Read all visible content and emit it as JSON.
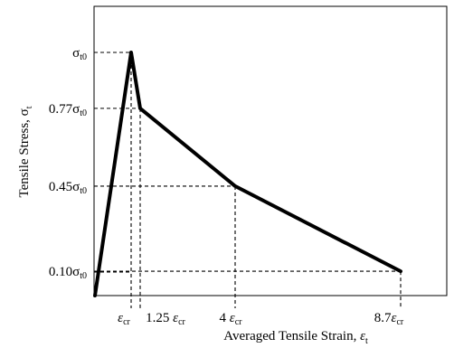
{
  "chart_data": {
    "type": "line",
    "xlabel": "Averaged Tensile Strain, ",
    "xlabel_symbol": "ε",
    "xlabel_sub": "t",
    "ylabel": "Tensile Stress, ",
    "ylabel_symbol": "σ",
    "ylabel_sub": "t",
    "x_ticks": [
      {
        "value": 1,
        "coef": "",
        "gap": "",
        "symbol": "ε",
        "sub": "cr"
      },
      {
        "value": 1.25,
        "coef": "1.25",
        "gap": " ",
        "symbol": "ε",
        "sub": "cr"
      },
      {
        "value": 4,
        "coef": "4",
        "gap": " ",
        "symbol": "ε",
        "sub": "cr"
      },
      {
        "value": 8.7,
        "coef": "8.7",
        "gap": "",
        "symbol": "ε",
        "sub": "cr"
      }
    ],
    "y_ticks": [
      {
        "value": 1,
        "coef": "",
        "symbol": "σ",
        "sub": "t0"
      },
      {
        "value": 0.77,
        "coef": "0.77",
        "symbol": "σ",
        "sub": "t0"
      },
      {
        "value": 0.45,
        "coef": "0.45",
        "symbol": "σ",
        "sub": "t0"
      },
      {
        "value": 0.1,
        "coef": "0.10",
        "symbol": "σ",
        "sub": "t0"
      }
    ],
    "series": [
      {
        "points": [
          {
            "x": 0,
            "y": 0
          },
          {
            "x": 1,
            "y": 1
          },
          {
            "x": 1.25,
            "y": 0.77
          },
          {
            "x": 4,
            "y": 0.45
          },
          {
            "x": 8.7,
            "y": 0.1
          }
        ]
      }
    ],
    "grid": false,
    "colors": {
      "line": "#000000",
      "frame": "#000000",
      "background": "#ffffff"
    }
  }
}
